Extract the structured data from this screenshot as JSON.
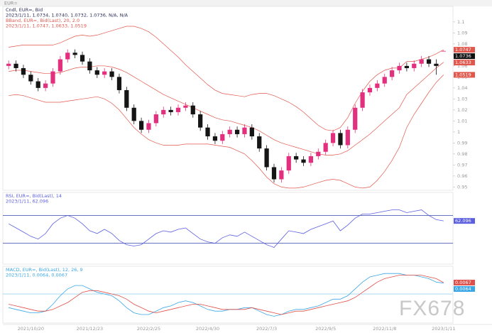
{
  "chart_data": [
    {
      "type": "candlestick",
      "header": "EUR=",
      "legend": [
        "Cndl, EUR=, Bid",
        "2023/1/11, 1.0734, 1.0740, 1.0732, 1.0736, N/A, N/A",
        "BBand, EUR=, Bid(Last), 20, 2.0",
        "2023/1/11, 1.0747, 1.0633, 1.0519"
      ],
      "categories": [
        null,
        null,
        null,
        "2021/10/20",
        null,
        null,
        null,
        null,
        null,
        null,
        null,
        "2021/12/23",
        null,
        null,
        null,
        null,
        null,
        null,
        null,
        "2022/2/25",
        null,
        null,
        null,
        null,
        null,
        null,
        null,
        "2022/4/30",
        null,
        null,
        null,
        null,
        null,
        null,
        null,
        "2022/7/3",
        null,
        null,
        null,
        null,
        null,
        null,
        null,
        "2022/9/5",
        null,
        null,
        null,
        null,
        null,
        null,
        null,
        "2022/11/8",
        null,
        null,
        null,
        null,
        null,
        null,
        null,
        "2023/1/11"
      ],
      "ohlc": [
        [
          1.06,
          1.065,
          1.057,
          1.062
        ],
        [
          1.062,
          1.065,
          1.055,
          1.058
        ],
        [
          1.058,
          1.061,
          1.049,
          1.052
        ],
        [
          1.052,
          1.055,
          1.043,
          1.046
        ],
        [
          1.046,
          1.049,
          1.037,
          1.04
        ],
        [
          1.04,
          1.047,
          1.037,
          1.044
        ],
        [
          1.044,
          1.058,
          1.041,
          1.055
        ],
        [
          1.055,
          1.069,
          1.052,
          1.066
        ],
        [
          1.066,
          1.075,
          1.063,
          1.072
        ],
        [
          1.072,
          1.075,
          1.067,
          1.07
        ],
        [
          1.07,
          1.073,
          1.061,
          1.064
        ],
        [
          1.064,
          1.067,
          1.053,
          1.056
        ],
        [
          1.056,
          1.059,
          1.049,
          1.052
        ],
        [
          1.052,
          1.058,
          1.049,
          1.055
        ],
        [
          1.055,
          1.058,
          1.047,
          1.05
        ],
        [
          1.05,
          1.053,
          1.035,
          1.038
        ],
        [
          1.038,
          1.041,
          1.019,
          1.022
        ],
        [
          1.022,
          1.025,
          1.007,
          1.01
        ],
        [
          1.01,
          1.013,
          0.999,
          1.002
        ],
        [
          1.002,
          1.011,
          0.999,
          1.008
        ],
        [
          1.008,
          1.019,
          1.005,
          1.016
        ],
        [
          1.016,
          1.023,
          1.013,
          1.02
        ],
        [
          1.02,
          1.023,
          1.015,
          1.018
        ],
        [
          1.018,
          1.025,
          1.015,
          1.022
        ],
        [
          1.022,
          1.027,
          1.019,
          1.024
        ],
        [
          1.024,
          1.027,
          1.013,
          1.016
        ],
        [
          1.016,
          1.019,
          1.001,
          1.004
        ],
        [
          1.004,
          1.007,
          0.993,
          0.996
        ],
        [
          0.996,
          0.999,
          0.989,
          0.992
        ],
        [
          0.992,
          1.001,
          0.989,
          0.998
        ],
        [
          0.998,
          1.005,
          0.995,
          1.002
        ],
        [
          1.002,
          1.005,
          0.995,
          0.998
        ],
        [
          0.998,
          1.007,
          0.995,
          1.004
        ],
        [
          1.004,
          1.007,
          0.993,
          0.996
        ],
        [
          0.996,
          0.999,
          0.982,
          0.985
        ],
        [
          0.985,
          0.988,
          0.965,
          0.968
        ],
        [
          0.968,
          0.971,
          0.954,
          0.957
        ],
        [
          0.957,
          0.968,
          0.954,
          0.965
        ],
        [
          0.965,
          0.981,
          0.962,
          0.978
        ],
        [
          0.978,
          0.981,
          0.972,
          0.975
        ],
        [
          0.975,
          0.978,
          0.969,
          0.972
        ],
        [
          0.972,
          0.981,
          0.969,
          0.978
        ],
        [
          0.978,
          0.985,
          0.975,
          0.982
        ],
        [
          0.982,
          0.993,
          0.979,
          0.99
        ],
        [
          0.99,
          1.002,
          0.987,
          0.999
        ],
        [
          0.999,
          1.002,
          0.985,
          0.988
        ],
        [
          0.988,
          1.005,
          0.985,
          1.002
        ],
        [
          1.002,
          1.025,
          0.999,
          1.022
        ],
        [
          1.022,
          1.039,
          1.019,
          1.036
        ],
        [
          1.036,
          1.043,
          1.033,
          1.04
        ],
        [
          1.04,
          1.047,
          1.037,
          1.044
        ],
        [
          1.044,
          1.053,
          1.041,
          1.05
        ],
        [
          1.05,
          1.059,
          1.047,
          1.056
        ],
        [
          1.056,
          1.063,
          1.053,
          1.06
        ],
        [
          1.06,
          1.063,
          1.055,
          1.058
        ],
        [
          1.058,
          1.065,
          1.055,
          1.062
        ],
        [
          1.062,
          1.069,
          1.059,
          1.066
        ],
        [
          1.066,
          1.069,
          1.059,
          1.062
        ],
        [
          1.062,
          1.066,
          1.052,
          1.06
        ],
        [
          1.0734,
          1.074,
          1.0732,
          1.0736
        ]
      ],
      "up_color": "#e3307e",
      "down_color": "#151515",
      "bands": {
        "color": "#e2574c",
        "upper": [
          1.077,
          1.078,
          1.079,
          1.079,
          1.079,
          1.079,
          1.079,
          1.081,
          1.084,
          1.087,
          1.088,
          1.087,
          1.088,
          1.09,
          1.092,
          1.094,
          1.096,
          1.096,
          1.094,
          1.091,
          1.086,
          1.08,
          1.074,
          1.068,
          1.061,
          1.055,
          1.049,
          1.043,
          1.038,
          1.035,
          1.034,
          1.033,
          1.032,
          1.034,
          1.035,
          1.035,
          1.033,
          1.03,
          1.027,
          1.023,
          1.018,
          1.012,
          1.006,
          1.002,
          1.001,
          1.004,
          1.013,
          1.026,
          1.037,
          1.046,
          1.052,
          1.056,
          1.058,
          1.058,
          1.064,
          1.064,
          1.066,
          1.068,
          1.071,
          1.0747
        ],
        "middle": [
          1.055,
          1.056,
          1.056,
          1.055,
          1.054,
          1.053,
          1.053,
          1.054,
          1.056,
          1.058,
          1.059,
          1.059,
          1.06,
          1.06,
          1.059,
          1.057,
          1.054,
          1.05,
          1.046,
          1.042,
          1.038,
          1.034,
          1.031,
          1.028,
          1.025,
          1.022,
          1.019,
          1.016,
          1.013,
          1.011,
          1.01,
          1.008,
          1.006,
          1.004,
          1.001,
          0.997,
          0.993,
          0.99,
          0.988,
          0.986,
          0.984,
          0.982,
          0.98,
          0.979,
          0.979,
          0.98,
          0.983,
          0.988,
          0.993,
          0.998,
          1.004,
          1.01,
          1.016,
          1.022,
          1.034,
          1.04,
          1.046,
          1.052,
          1.058,
          1.0633
        ],
        "lower": [
          1.033,
          1.034,
          1.033,
          1.031,
          1.029,
          1.027,
          1.027,
          1.027,
          1.028,
          1.029,
          1.03,
          1.031,
          1.032,
          1.03,
          1.026,
          1.02,
          1.012,
          1.004,
          0.998,
          0.993,
          0.99,
          0.988,
          0.988,
          0.988,
          0.989,
          0.989,
          0.989,
          0.989,
          0.988,
          0.987,
          0.986,
          0.983,
          0.98,
          0.974,
          0.967,
          0.959,
          0.953,
          0.95,
          0.949,
          0.949,
          0.95,
          0.952,
          0.954,
          0.956,
          0.957,
          0.956,
          0.953,
          0.95,
          0.949,
          0.95,
          0.956,
          0.964,
          0.974,
          0.986,
          1.004,
          1.016,
          1.026,
          1.036,
          1.045,
          1.0519
        ]
      },
      "ylim": [
        0.947,
        1.107
      ],
      "yticks": [
        0.95,
        0.96,
        0.97,
        0.98,
        0.99,
        1,
        1.01,
        1.02,
        1.03,
        1.04,
        1.05,
        1.06,
        1.07,
        1.08,
        1.09,
        1.1
      ]
    },
    {
      "type": "line",
      "legend": [
        "RSI, EUR=, Bid(Last), 14",
        "2023/1/11, 62.096"
      ],
      "series": [
        {
          "color": "#5b5fe0",
          "values": [
            58,
            52,
            46,
            40,
            36,
            44,
            58,
            66,
            70,
            66,
            58,
            48,
            44,
            50,
            44,
            34,
            28,
            26,
            28,
            36,
            44,
            48,
            46,
            50,
            52,
            44,
            36,
            32,
            30,
            38,
            42,
            40,
            46,
            40,
            34,
            28,
            24,
            36,
            48,
            46,
            44,
            50,
            54,
            58,
            62,
            48,
            56,
            66,
            72,
            72,
            74,
            76,
            78,
            78,
            74,
            76,
            78,
            70,
            64,
            62.096
          ]
        }
      ],
      "levels": [
        70,
        30
      ],
      "level_color": "#5060b8",
      "ylim": [
        0,
        100
      ]
    },
    {
      "type": "line",
      "legend": [
        "MACD, EUR=, Bid(Last), 12, 26, 9",
        "2023/1/11, 0.0064, 0.0067"
      ],
      "series": [
        {
          "color": "#3aa6e6",
          "values": [
            -0.008,
            -0.009,
            -0.01,
            -0.011,
            -0.011,
            -0.01,
            -0.006,
            -0.001,
            0.003,
            0.005,
            0.005,
            0.003,
            0.001,
            0.0,
            -0.001,
            -0.004,
            -0.008,
            -0.011,
            -0.012,
            -0.012,
            -0.01,
            -0.008,
            -0.007,
            -0.005,
            -0.004,
            -0.005,
            -0.007,
            -0.009,
            -0.01,
            -0.01,
            -0.009,
            -0.009,
            -0.008,
            -0.008,
            -0.01,
            -0.012,
            -0.013,
            -0.012,
            -0.01,
            -0.009,
            -0.009,
            -0.008,
            -0.007,
            -0.005,
            -0.003,
            -0.003,
            -0.001,
            0.003,
            0.007,
            0.01,
            0.011,
            0.012,
            0.012,
            0.012,
            0.011,
            0.011,
            0.01,
            0.009,
            0.007,
            0.0064
          ]
        },
        {
          "color": "#e0504a",
          "values": [
            -0.006,
            -0.007,
            -0.008,
            -0.009,
            -0.01,
            -0.01,
            -0.009,
            -0.007,
            -0.005,
            -0.002,
            0.001,
            0.002,
            0.002,
            0.001,
            0.0,
            -0.001,
            -0.003,
            -0.006,
            -0.008,
            -0.01,
            -0.011,
            -0.01,
            -0.009,
            -0.008,
            -0.007,
            -0.006,
            -0.006,
            -0.007,
            -0.008,
            -0.009,
            -0.009,
            -0.009,
            -0.009,
            -0.008,
            -0.009,
            -0.01,
            -0.011,
            -0.012,
            -0.011,
            -0.01,
            -0.01,
            -0.009,
            -0.008,
            -0.007,
            -0.006,
            -0.005,
            -0.004,
            -0.002,
            0.001,
            0.004,
            0.007,
            0.009,
            0.01,
            0.011,
            0.011,
            0.011,
            0.011,
            0.01,
            0.009,
            0.0067
          ]
        }
      ],
      "levels": [
        0
      ],
      "level_color": "#9fd3ee",
      "ylim": [
        -0.017,
        0.015
      ]
    },
    {
      "watermark": "FX678"
    }
  ]
}
